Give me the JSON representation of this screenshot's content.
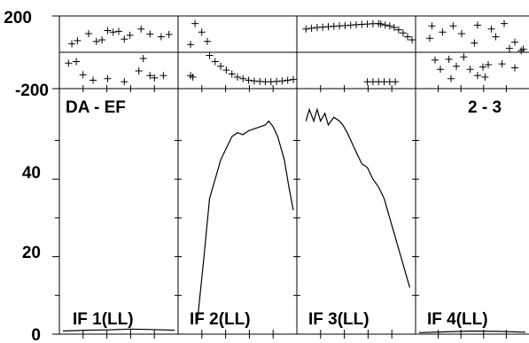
{
  "chart_data": {
    "type": "line",
    "layout": "4 adjacent panels sharing axes, each with a small scatter strip on top and a line plot below",
    "top_strip": {
      "yticks": [
        200,
        -200
      ],
      "ylim": [
        -200,
        200
      ]
    },
    "main": {
      "yticks": [
        0,
        20,
        40
      ],
      "ylim": [
        0,
        62
      ]
    },
    "left_label": "DA - EF",
    "right_label": "2 - 3",
    "panels": [
      {
        "label": "IF 1(LL)",
        "scatter": [
          [
            0.08,
            55
          ],
          [
            0.13,
            75
          ],
          [
            0.23,
            120
          ],
          [
            0.3,
            70
          ],
          [
            0.35,
            80
          ],
          [
            0.4,
            140
          ],
          [
            0.45,
            130
          ],
          [
            0.5,
            135
          ],
          [
            0.55,
            85
          ],
          [
            0.6,
            110
          ],
          [
            0.7,
            150
          ],
          [
            0.78,
            118
          ],
          [
            0.88,
            100
          ],
          [
            0.95,
            115
          ],
          [
            0.05,
            -70
          ],
          [
            0.12,
            -60
          ],
          [
            0.18,
            -145
          ],
          [
            0.27,
            -180
          ],
          [
            0.4,
            -170
          ],
          [
            0.55,
            -190
          ],
          [
            0.68,
            -120
          ],
          [
            0.72,
            -40
          ],
          [
            0.78,
            -150
          ],
          [
            0.82,
            -165
          ],
          [
            0.9,
            -150
          ]
        ],
        "line": [
          [
            0,
            0.8
          ],
          [
            0.2,
            1.0
          ],
          [
            0.4,
            1.1
          ],
          [
            0.6,
            1.3
          ],
          [
            0.8,
            1.2
          ],
          [
            1.0,
            1.0
          ]
        ]
      },
      {
        "label": "IF 2(LL)",
        "scatter": [
          [
            0.12,
            185
          ],
          [
            0.08,
            50
          ],
          [
            0.18,
            130
          ],
          [
            0.23,
            70
          ],
          [
            0.25,
            -20
          ],
          [
            0.3,
            -60
          ],
          [
            0.35,
            -90
          ],
          [
            0.4,
            -115
          ],
          [
            0.45,
            -140
          ],
          [
            0.5,
            -160
          ],
          [
            0.55,
            -170
          ],
          [
            0.6,
            -180
          ],
          [
            0.65,
            -185
          ],
          [
            0.7,
            -188
          ],
          [
            0.75,
            -190
          ],
          [
            0.8,
            -190
          ],
          [
            0.85,
            -188
          ],
          [
            0.9,
            -185
          ],
          [
            0.95,
            -180
          ],
          [
            1.0,
            -175
          ],
          [
            0.1,
            -160
          ],
          [
            0.08,
            -150
          ]
        ],
        "line": [
          [
            0.14,
            3
          ],
          [
            0.2,
            20
          ],
          [
            0.25,
            35
          ],
          [
            0.35,
            45
          ],
          [
            0.45,
            51
          ],
          [
            0.5,
            52
          ],
          [
            0.55,
            51.5
          ],
          [
            0.6,
            52.5
          ],
          [
            0.65,
            53
          ],
          [
            0.7,
            53.5
          ],
          [
            0.75,
            54
          ],
          [
            0.78,
            55
          ],
          [
            0.82,
            53.5
          ],
          [
            0.86,
            51
          ],
          [
            0.92,
            45
          ],
          [
            0.96,
            38
          ],
          [
            1.0,
            32
          ]
        ]
      },
      {
        "label": "IF 3(LL)",
        "scatter": [
          [
            0.05,
            150
          ],
          [
            0.1,
            155
          ],
          [
            0.15,
            160
          ],
          [
            0.2,
            162
          ],
          [
            0.25,
            165
          ],
          [
            0.3,
            168
          ],
          [
            0.35,
            170
          ],
          [
            0.4,
            172
          ],
          [
            0.45,
            175
          ],
          [
            0.5,
            178
          ],
          [
            0.55,
            180
          ],
          [
            0.6,
            182
          ],
          [
            0.65,
            184
          ],
          [
            0.7,
            185
          ],
          [
            0.72,
            182
          ],
          [
            0.76,
            176
          ],
          [
            0.8,
            170
          ],
          [
            0.84,
            160
          ],
          [
            0.88,
            145
          ],
          [
            0.92,
            125
          ],
          [
            0.96,
            100
          ],
          [
            1.0,
            80
          ],
          [
            0.6,
            -190
          ],
          [
            0.65,
            -190
          ],
          [
            0.7,
            -190
          ],
          [
            0.75,
            -190
          ],
          [
            0.8,
            -190
          ],
          [
            0.85,
            -190
          ]
        ],
        "line": [
          [
            0.05,
            55
          ],
          [
            0.08,
            58
          ],
          [
            0.12,
            55
          ],
          [
            0.15,
            58
          ],
          [
            0.18,
            55
          ],
          [
            0.22,
            57
          ],
          [
            0.25,
            54
          ],
          [
            0.3,
            56
          ],
          [
            0.35,
            55
          ],
          [
            0.38,
            54
          ],
          [
            0.42,
            52
          ],
          [
            0.5,
            47
          ],
          [
            0.55,
            44
          ],
          [
            0.6,
            43
          ],
          [
            0.65,
            40
          ],
          [
            0.7,
            38
          ],
          [
            0.75,
            35
          ],
          [
            0.8,
            30
          ],
          [
            0.85,
            25
          ],
          [
            0.9,
            20
          ],
          [
            0.95,
            15
          ],
          [
            0.98,
            12
          ]
        ]
      },
      {
        "label": "IF 4(LL)",
        "scatter": [
          [
            0.12,
            170
          ],
          [
            0.32,
            170
          ],
          [
            0.55,
            175
          ],
          [
            0.8,
            185
          ],
          [
            0.1,
            90
          ],
          [
            0.22,
            130
          ],
          [
            0.4,
            120
          ],
          [
            0.52,
            60
          ],
          [
            0.68,
            150
          ],
          [
            0.72,
            100
          ],
          [
            0.85,
            25
          ],
          [
            0.9,
            65
          ],
          [
            0.96,
            10
          ],
          [
            0.98,
            20
          ],
          [
            0.28,
            -45
          ],
          [
            0.35,
            -90
          ],
          [
            0.42,
            -30
          ],
          [
            0.48,
            -110
          ],
          [
            0.6,
            -95
          ],
          [
            0.65,
            -80
          ],
          [
            0.15,
            -50
          ],
          [
            0.2,
            -110
          ],
          [
            0.3,
            -170
          ],
          [
            0.55,
            -150
          ],
          [
            0.62,
            -160
          ],
          [
            0.78,
            -75
          ],
          [
            0.9,
            -100
          ]
        ],
        "line": [
          [
            0,
            0.4
          ],
          [
            0.25,
            0.6
          ],
          [
            0.5,
            0.8
          ],
          [
            0.75,
            0.7
          ],
          [
            1.0,
            0.5
          ]
        ]
      }
    ]
  }
}
